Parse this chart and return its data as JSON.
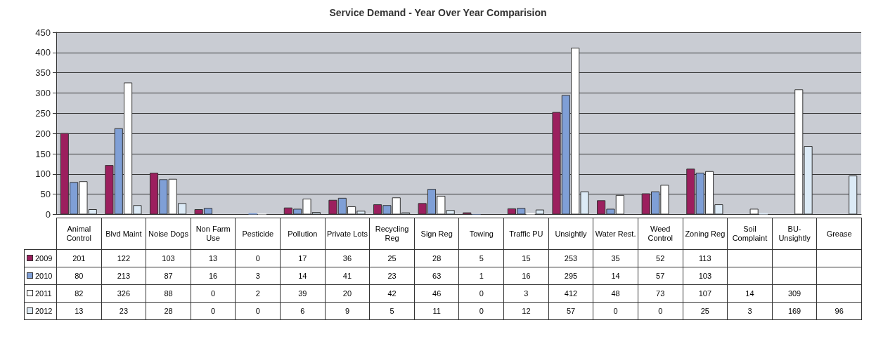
{
  "chart_data": {
    "type": "bar",
    "title": "Service Demand - Year Over Year Comparision",
    "categories": [
      "Animal Control",
      "Blvd Maint",
      "Noise Dogs",
      "Non Farm Use",
      "Pesticide",
      "Pollution",
      "Private Lots",
      "Recycling Reg",
      "Sign Reg",
      "Towing",
      "Traffic PU",
      "Unsightly",
      "Water Rest.",
      "Weed Control",
      "Zoning Reg",
      "Soil Complaint",
      "BU-Unsightly",
      "Grease"
    ],
    "series": [
      {
        "name": "2009",
        "color": "#9c1f5e",
        "values": [
          201,
          122,
          103,
          13,
          0,
          17,
          36,
          25,
          28,
          5,
          15,
          253,
          35,
          52,
          113,
          null,
          null,
          null
        ]
      },
      {
        "name": "2010",
        "color": "#7f9fd6",
        "values": [
          80,
          213,
          87,
          16,
          3,
          14,
          41,
          23,
          63,
          1,
          16,
          295,
          14,
          57,
          103,
          null,
          null,
          null
        ]
      },
      {
        "name": "2011",
        "color": "#ffffff",
        "values": [
          82,
          326,
          88,
          0,
          2,
          39,
          20,
          42,
          46,
          0,
          3,
          412,
          48,
          73,
          107,
          14,
          309,
          null
        ]
      },
      {
        "name": "2012",
        "color": "#dceaf6",
        "values": [
          13,
          23,
          28,
          0,
          0,
          6,
          9,
          5,
          11,
          0,
          12,
          57,
          0,
          0,
          25,
          3,
          169,
          96
        ]
      }
    ],
    "ylim": [
      0,
      450
    ],
    "yticks": [
      0,
      50,
      100,
      150,
      200,
      250,
      300,
      350,
      400,
      450
    ],
    "grid": "y",
    "legend": "bottom left",
    "data_labels": true
  }
}
